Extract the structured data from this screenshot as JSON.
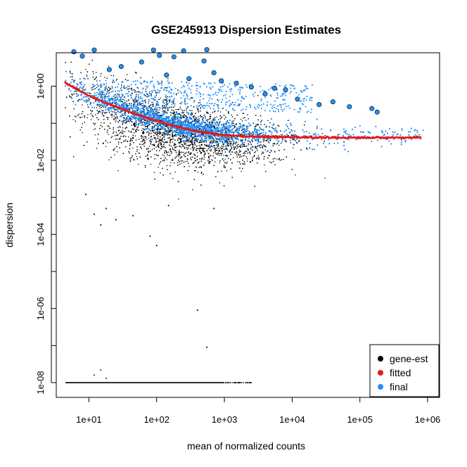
{
  "chart_data": {
    "type": "scatter",
    "title": "GSE245913 Dispersion Estimates",
    "xlabel": "mean of normalized counts",
    "ylabel": "dispersion",
    "x_scale": "log10",
    "y_scale": "log10",
    "xlim": [
      3.3,
      1500000
    ],
    "ylim": [
      4e-09,
      8
    ],
    "x_ticks": [
      {
        "value": 10,
        "label": "1e+01"
      },
      {
        "value": 100,
        "label": "1e+02"
      },
      {
        "value": 1000,
        "label": "1e+03"
      },
      {
        "value": 10000,
        "label": "1e+04"
      },
      {
        "value": 100000,
        "label": "1e+05"
      },
      {
        "value": 1000000,
        "label": "1e+06"
      }
    ],
    "y_ticks": [
      {
        "value": 1e-08,
        "label": "1e-08"
      },
      {
        "value": 1e-06,
        "label": "1e-06"
      },
      {
        "value": 0.0001,
        "label": "1e-04"
      },
      {
        "value": 0.01,
        "label": "1e-02"
      },
      {
        "value": 1,
        "label": "1e+00"
      }
    ],
    "grid": false,
    "legend_position": "bottom-right",
    "legend": [
      {
        "name": "gene-est",
        "color": "#000000"
      },
      {
        "name": "fitted",
        "color": "#e31a1c"
      },
      {
        "name": "final",
        "color": "#1e90ff"
      }
    ],
    "series": [
      {
        "name": "fitted",
        "color": "#e31a1c",
        "x": [
          4.5,
          7,
          10,
          15,
          25,
          40,
          70,
          100,
          200,
          400,
          700,
          1000,
          2000,
          5000,
          10000,
          30000,
          100000,
          300000,
          800000
        ],
        "y": [
          1.25,
          0.78,
          0.55,
          0.4,
          0.28,
          0.2,
          0.14,
          0.115,
          0.08,
          0.06,
          0.052,
          0.048,
          0.045,
          0.043,
          0.042,
          0.041,
          0.041,
          0.041,
          0.041
        ]
      },
      {
        "name": "final",
        "color": "#1e90ff",
        "highlighted_outliers": [
          {
            "x": 6,
            "y": 8.5
          },
          {
            "x": 8,
            "y": 6.5
          },
          {
            "x": 12,
            "y": 9.5
          },
          {
            "x": 20,
            "y": 2.8
          },
          {
            "x": 30,
            "y": 3.4
          },
          {
            "x": 60,
            "y": 4.5
          },
          {
            "x": 90,
            "y": 9.5
          },
          {
            "x": 110,
            "y": 6.8
          },
          {
            "x": 140,
            "y": 2.0
          },
          {
            "x": 180,
            "y": 6.2
          },
          {
            "x": 250,
            "y": 9.0
          },
          {
            "x": 300,
            "y": 1.6
          },
          {
            "x": 500,
            "y": 4.8
          },
          {
            "x": 550,
            "y": 9.7
          },
          {
            "x": 700,
            "y": 2.3
          },
          {
            "x": 900,
            "y": 1.4
          },
          {
            "x": 1500,
            "y": 1.2
          },
          {
            "x": 2500,
            "y": 0.95
          },
          {
            "x": 4000,
            "y": 0.62
          },
          {
            "x": 5500,
            "y": 0.88
          },
          {
            "x": 8000,
            "y": 0.8
          },
          {
            "x": 12000,
            "y": 0.45
          },
          {
            "x": 25000,
            "y": 0.32
          },
          {
            "x": 40000,
            "y": 0.38
          },
          {
            "x": 70000,
            "y": 0.28
          },
          {
            "x": 150000,
            "y": 0.25
          },
          {
            "x": 180000,
            "y": 0.2
          }
        ]
      },
      {
        "name": "gene-est",
        "color": "#000000",
        "low_outliers": [
          {
            "x": 9,
            "y": 0.0012
          },
          {
            "x": 12,
            "y": 0.00035
          },
          {
            "x": 15,
            "y": 0.00018
          },
          {
            "x": 18,
            "y": 0.0005
          },
          {
            "x": 25,
            "y": 0.00025
          },
          {
            "x": 45,
            "y": 0.00032
          },
          {
            "x": 80,
            "y": 9e-05
          },
          {
            "x": 100,
            "y": 5e-05
          },
          {
            "x": 150,
            "y": 0.0006
          },
          {
            "x": 400,
            "y": 9e-07
          },
          {
            "x": 550,
            "y": 9e-08
          },
          {
            "x": 700,
            "y": 0.0005
          }
        ],
        "floor_value": 1e-08,
        "floor_x_range": [
          4.5,
          2500
        ]
      }
    ]
  }
}
